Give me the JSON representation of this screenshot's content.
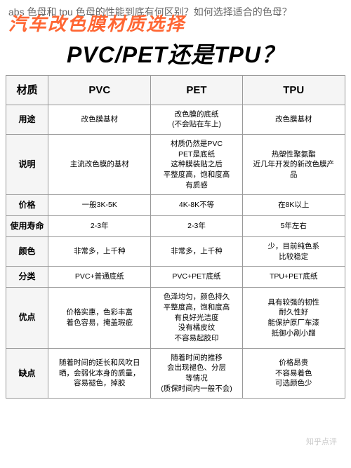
{
  "header": {
    "question": "abs 色母和 tpu 色母的性能到底有何区别？如何选择适合的色母？",
    "main_title": "汽车改色膜材质选择",
    "sub_title": "PVC/PET还是TPU？"
  },
  "table": {
    "corner": "材质",
    "columns": [
      "PVC",
      "PET",
      "TPU"
    ],
    "rows": [
      {
        "label": "用途",
        "cells": [
          "改色膜基材",
          "改色膜的底纸\n(不会贴在车上)",
          "改色膜基材"
        ]
      },
      {
        "label": "说明",
        "cells": [
          "主流改色膜的基材",
          "材质仍然是PVC\nPET是底纸\n这种膜装贴之后\n平整度高，饱和度高\n有质感",
          "热塑性聚氨酯\n近几年开发的新改色膜产\n品"
        ]
      },
      {
        "label": "价格",
        "cells": [
          "一般3K-5K",
          "4K-8K不等",
          "在8K以上"
        ]
      },
      {
        "label": "使用寿命",
        "cells": [
          "2-3年",
          "2-3年",
          "5年左右"
        ]
      },
      {
        "label": "颜色",
        "cells": [
          "非常多，上千种",
          "非常多，上千种",
          "少，目前纯色系\n比较稳定"
        ]
      },
      {
        "label": "分类",
        "cells": [
          "PVC+普通底纸",
          "PVC+PET底纸",
          "TPU+PET底纸"
        ]
      },
      {
        "label": "优点",
        "cells": [
          "价格实惠，色彩丰富\n着色容易，掩盖瑕疵",
          "色泽均匀，颜色持久\n平整度高，饱和度高\n有良好光洁度\n没有橘皮纹\n不容易起胶印",
          "具有较强的韧性\n耐久性好\n能保护原厂车漆\n抵御小剐小蹭"
        ]
      },
      {
        "label": "缺点",
        "cells": [
          "随着时间的延长和风吹日\n晒，会弱化本身的质量，\n容易褪色，掉胶",
          "随着时间的推移\n会出现褪色、分层\n等情况\n(质保时间内一般不会)",
          "价格昂贵\n不容易着色\n可选颜色少"
        ]
      }
    ]
  },
  "watermark": "知乎点评",
  "colors": {
    "title_color": "#ff6633",
    "border_color": "#999999",
    "header_bg": "#f5f5f5"
  }
}
